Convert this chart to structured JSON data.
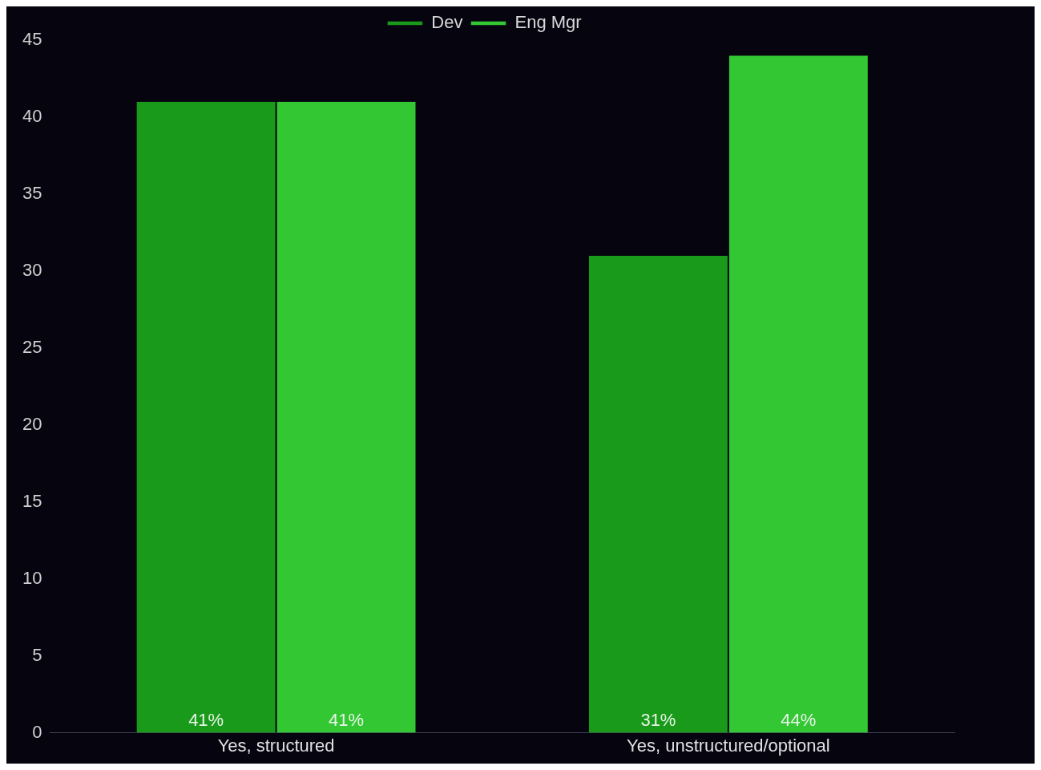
{
  "chart_data": {
    "type": "bar",
    "categories": [
      "Yes, structured",
      "Yes, unstructured/optional"
    ],
    "series": [
      {
        "name": "Dev",
        "color": "#1a9a1a",
        "values": [
          41,
          31
        ],
        "value_labels": [
          "41%",
          "31%"
        ]
      },
      {
        "name": "Eng Mgr",
        "color": "#33c733",
        "values": [
          41,
          44
        ],
        "value_labels": [
          "41%",
          "44%"
        ]
      }
    ],
    "ylim": [
      0,
      45
    ],
    "yticks": [
      0,
      5,
      10,
      15,
      20,
      25,
      30,
      35,
      40,
      45
    ],
    "grid": false,
    "legend": "top"
  }
}
